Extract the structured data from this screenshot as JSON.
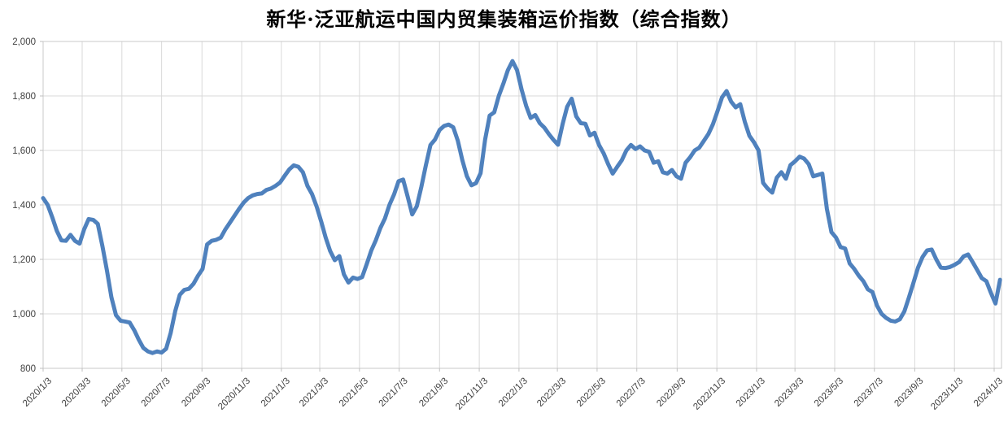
{
  "chart_data": {
    "type": "line",
    "title": "新华·泛亚航运中国内贸集装箱运价指数（综合指数）",
    "xlabel": "",
    "ylabel": "",
    "ylim": [
      800,
      2000
    ],
    "y_step": 200,
    "y_ticks": [
      "800",
      "1,000",
      "1,200",
      "1,400",
      "1,600",
      "1,800",
      "2,000"
    ],
    "x_ticks": [
      "2020/1/3",
      "2020/3/3",
      "2020/5/3",
      "2020/7/3",
      "2020/9/3",
      "2020/11/3",
      "2021/1/3",
      "2021/3/3",
      "2021/5/3",
      "2021/7/3",
      "2021/9/3",
      "2021/11/3",
      "2022/1/3",
      "2022/3/3",
      "2022/5/3",
      "2022/7/3",
      "2022/9/3",
      "2022/11/3",
      "2023/1/3",
      "2023/3/3",
      "2023/5/3",
      "2023/7/3",
      "2023/9/3",
      "2023/11/3",
      "2024/1/3"
    ],
    "grid": true,
    "legend": "none",
    "colors": {
      "line": "#4F81BD",
      "grid": "#D9D9D9",
      "border": "#C9C9C9",
      "tick": "#BFBFBF",
      "axis_text": "#404040",
      "title_text": "#000000"
    },
    "series": [
      {
        "name": "综合指数",
        "start_date": "2020/1/3",
        "frequency": "weekly",
        "values": [
          1425,
          1400,
          1355,
          1305,
          1270,
          1268,
          1290,
          1268,
          1258,
          1310,
          1348,
          1345,
          1330,
          1250,
          1160,
          1060,
          995,
          975,
          972,
          968,
          940,
          905,
          875,
          862,
          856,
          862,
          858,
          872,
          930,
          1010,
          1070,
          1088,
          1092,
          1110,
          1140,
          1165,
          1255,
          1268,
          1272,
          1280,
          1310,
          1335,
          1360,
          1385,
          1408,
          1425,
          1435,
          1440,
          1442,
          1455,
          1460,
          1470,
          1482,
          1507,
          1530,
          1545,
          1540,
          1520,
          1470,
          1440,
          1395,
          1340,
          1280,
          1230,
          1197,
          1212,
          1145,
          1115,
          1133,
          1128,
          1135,
          1182,
          1232,
          1270,
          1315,
          1350,
          1400,
          1438,
          1487,
          1493,
          1430,
          1365,
          1395,
          1466,
          1546,
          1620,
          1640,
          1675,
          1690,
          1695,
          1685,
          1636,
          1564,
          1505,
          1472,
          1480,
          1516,
          1640,
          1728,
          1740,
          1800,
          1845,
          1895,
          1928,
          1895,
          1824,
          1764,
          1719,
          1730,
          1700,
          1684,
          1660,
          1639,
          1621,
          1696,
          1760,
          1790,
          1725,
          1700,
          1698,
          1655,
          1665,
          1620,
          1590,
          1550,
          1515,
          1540,
          1564,
          1600,
          1620,
          1605,
          1615,
          1600,
          1595,
          1555,
          1560,
          1520,
          1515,
          1528,
          1505,
          1496,
          1555,
          1575,
          1600,
          1610,
          1635,
          1660,
          1696,
          1744,
          1795,
          1818,
          1779,
          1758,
          1770,
          1705,
          1654,
          1630,
          1600,
          1481,
          1460,
          1445,
          1500,
          1520,
          1496,
          1546,
          1560,
          1577,
          1570,
          1550,
          1505,
          1510,
          1515,
          1385,
          1300,
          1280,
          1245,
          1240,
          1185,
          1165,
          1140,
          1120,
          1090,
          1080,
          1030,
          1000,
          985,
          975,
          972,
          980,
          1009,
          1060,
          1114,
          1170,
          1209,
          1233,
          1236,
          1200,
          1170,
          1168,
          1172,
          1180,
          1190,
          1211,
          1218,
          1190,
          1161,
          1131,
          1120,
          1077,
          1038,
          1125
        ]
      }
    ]
  }
}
